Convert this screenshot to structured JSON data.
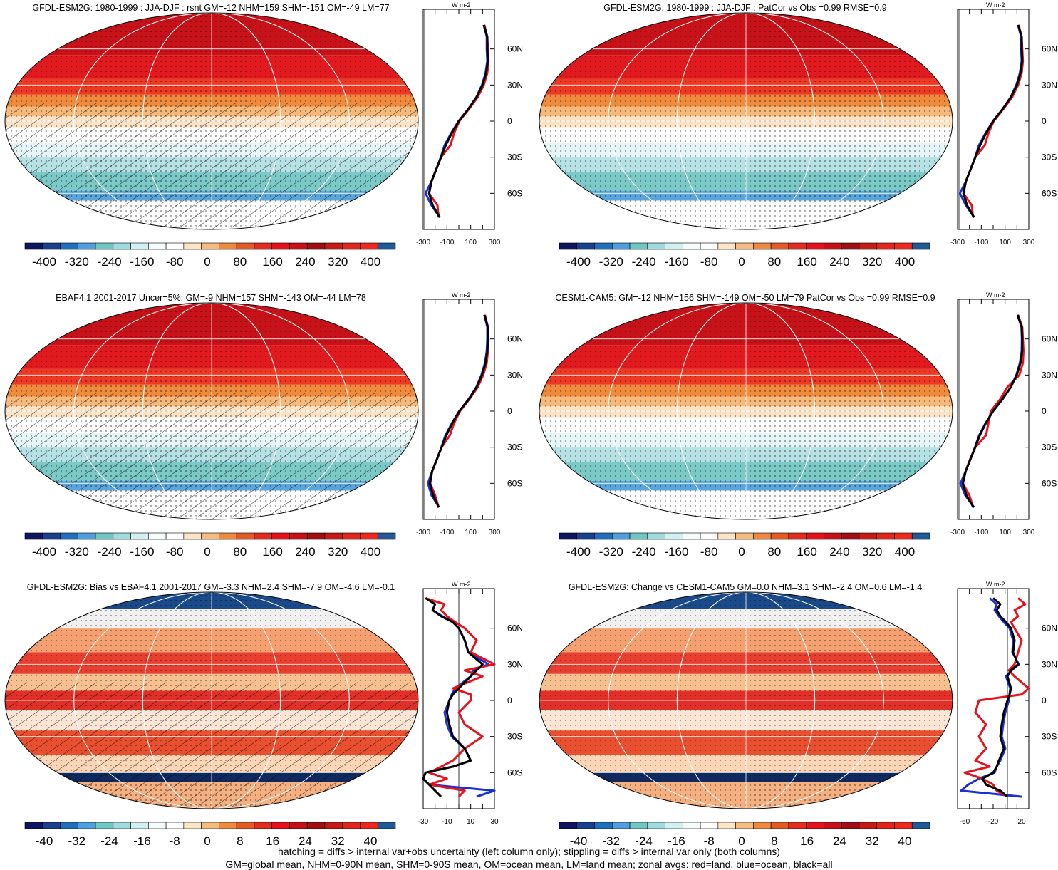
{
  "panels": [
    {
      "id": "p1",
      "title": "GFDL-ESM2G: 1980-1999 : JJA-DJF : rsnt GM=-12 NHM=159 SHM=-151 OM=-49 LM=77",
      "kind": "absolute",
      "hatched": true,
      "cb_labels": [
        "-400",
        "-320",
        "-240",
        "-160",
        "-80",
        "0",
        "80",
        "160",
        "240",
        "320",
        "400"
      ],
      "zonal_xticks": [
        "-300",
        "-100",
        "100",
        "300"
      ],
      "zonal_xrange": [
        -300,
        300
      ],
      "zonal_yticks": [
        "60N",
        "30N",
        "0",
        "30S",
        "60S"
      ],
      "unit": "W m-2"
    },
    {
      "id": "p2",
      "title": "GFDL-ESM2G: 1980-1999 : JJA-DJF : PatCor vs Obs =0.99 RMSE=0.9",
      "kind": "absolute",
      "hatched": false,
      "cb_labels": [
        "-400",
        "-320",
        "-240",
        "-160",
        "-80",
        "0",
        "80",
        "160",
        "240",
        "320",
        "400"
      ],
      "zonal_xticks": [
        "-300",
        "-100",
        "100",
        "300"
      ],
      "zonal_xrange": [
        -300,
        300
      ],
      "zonal_yticks": [
        "60N",
        "30N",
        "0",
        "30S",
        "60S"
      ],
      "unit": "W m-2"
    },
    {
      "id": "p3",
      "title": "EBAF4.1 2001-2017 Uncer=5%: GM=-9 NHM=157 SHM=-143 OM=-44 LM=78",
      "kind": "absolute",
      "hatched": true,
      "cb_labels": [
        "-400",
        "-320",
        "-240",
        "-160",
        "-80",
        "0",
        "80",
        "160",
        "240",
        "320",
        "400"
      ],
      "zonal_xticks": [
        "-300",
        "-100",
        "100",
        "300"
      ],
      "zonal_xrange": [
        -300,
        300
      ],
      "zonal_yticks": [
        "60N",
        "30N",
        "0",
        "30S",
        "60S"
      ],
      "unit": "W m-2"
    },
    {
      "id": "p4",
      "title": "CESM1-CAM5: GM=-12 NHM=156 SHM=-149 OM=-50 LM=79 PatCor vs Obs =0.99 RMSE=0.9",
      "kind": "absolute",
      "hatched": false,
      "cb_labels": [
        "-400",
        "-320",
        "-240",
        "-160",
        "-80",
        "0",
        "80",
        "160",
        "240",
        "320",
        "400"
      ],
      "zonal_xticks": [
        "-300",
        "-100",
        "100",
        "300"
      ],
      "zonal_xrange": [
        -300,
        300
      ],
      "zonal_yticks": [
        "60N",
        "30N",
        "0",
        "30S",
        "60S"
      ],
      "unit": "W m-2"
    },
    {
      "id": "p5",
      "title": "GFDL-ESM2G: Bias vs EBAF4.1 2001-2017 GM=-3.3 NHM=2.4 SHM=-7.9 OM=-4.6 LM=-0.1",
      "kind": "diff",
      "hatched": true,
      "cb_labels": [
        "-40",
        "-32",
        "-24",
        "-16",
        "-8",
        "0",
        "8",
        "16",
        "24",
        "32",
        "40"
      ],
      "zonal_xticks": [
        "-30",
        "-10",
        "10",
        "30"
      ],
      "zonal_xrange": [
        -30,
        30
      ],
      "zonal_yticks": [
        "60N",
        "30N",
        "0",
        "30S",
        "60S"
      ],
      "unit": "W m-2"
    },
    {
      "id": "p6",
      "title": "GFDL-ESM2G: Change vs CESM1-CAM5 GM=0.0 NHM=3.1 SHM=-2.4 OM=0.6 LM=-1.4",
      "kind": "diff",
      "hatched": false,
      "cb_labels": [
        "-40",
        "-32",
        "-24",
        "-16",
        "-8",
        "0",
        "8",
        "16",
        "24",
        "32",
        "40"
      ],
      "zonal_xticks": [
        "-60",
        "-20",
        "20"
      ],
      "zonal_xrange": [
        -70,
        30
      ],
      "zonal_yticks": [
        "60N",
        "30N",
        "0",
        "30S",
        "60S"
      ],
      "unit": "W m-2"
    }
  ],
  "colorbar_colors": [
    "#0c1560",
    "#15418f",
    "#1f6fbf",
    "#4f9fdf",
    "#6fc6c3",
    "#a0dbe0",
    "#d0f0f2",
    "#f6fbfb",
    "#ffffff",
    "#fde4c4",
    "#f6bb7f",
    "#ee8a3f",
    "#e45a24",
    "#e42b20",
    "#e8101a",
    "#c81018",
    "#9e0e12",
    "#c51a16",
    "#e3241b",
    "#f0281c",
    "#1d5a97"
  ],
  "footer": {
    "line1": "hatching = diffs > internal var+obs uncertainty (left column only); stippling = diffs > internal var only (both columns)",
    "line2": "GM=global mean, NHM=0-90N mean, SHM=0-90S mean, OM=ocean mean, LM=land mean; zonal avgs: red=land, blue=ocean, black=all"
  },
  "chart_data": [
    {
      "type": "heatmap",
      "title": "GFDL-ESM2G: 1980-1999 : JJA-DJF : rsnt GM=-12 NHM=159 SHM=-151 OM=-49 LM=77",
      "zonal_mean_lat": [
        80,
        70,
        60,
        50,
        40,
        30,
        20,
        10,
        0,
        -10,
        -20,
        -30,
        -40,
        -50,
        -60,
        -70,
        -80
      ],
      "zonal_all": [
        210,
        240,
        240,
        245,
        230,
        200,
        150,
        80,
        0,
        -60,
        -110,
        -150,
        -190,
        -230,
        -250,
        -220,
        -160
      ],
      "zonal_land": [
        215,
        240,
        245,
        250,
        240,
        210,
        160,
        85,
        5,
        -40,
        -70,
        -150,
        -190,
        -230,
        -250,
        -180,
        -170
      ],
      "zonal_ocean": [
        210,
        235,
        235,
        240,
        225,
        195,
        148,
        80,
        -2,
        -65,
        -120,
        -152,
        -190,
        -230,
        -280,
        -230,
        -160
      ]
    },
    {
      "type": "heatmap",
      "title": "GFDL-ESM2G: 1980-1999 : JJA-DJF : PatCor vs Obs =0.99 RMSE=0.9",
      "zonal_mean_lat": [
        80,
        70,
        60,
        50,
        40,
        30,
        20,
        10,
        0,
        -10,
        -20,
        -30,
        -40,
        -50,
        -60,
        -70,
        -80
      ],
      "zonal_all": [
        210,
        240,
        240,
        245,
        230,
        200,
        150,
        80,
        0,
        -60,
        -110,
        -150,
        -190,
        -230,
        -250,
        -220,
        -160
      ],
      "zonal_land": [
        215,
        240,
        245,
        250,
        240,
        210,
        160,
        85,
        5,
        -40,
        -70,
        -150,
        -190,
        -230,
        -250,
        -180,
        -170
      ],
      "zonal_ocean": [
        210,
        235,
        235,
        240,
        225,
        195,
        148,
        80,
        -2,
        -65,
        -120,
        -152,
        -190,
        -230,
        -280,
        -230,
        -160
      ]
    },
    {
      "type": "heatmap",
      "title": "EBAF4.1 2001-2017 Uncer=5%: GM=-9 NHM=157 SHM=-143 OM=-44 LM=78",
      "zonal_mean_lat": [
        80,
        70,
        60,
        50,
        40,
        30,
        20,
        10,
        0,
        -10,
        -20,
        -30,
        -40,
        -50,
        -60,
        -70,
        -80
      ],
      "zonal_all": [
        215,
        245,
        245,
        240,
        225,
        195,
        150,
        85,
        5,
        -55,
        -105,
        -145,
        -185,
        -225,
        -245,
        -215,
        -170
      ],
      "zonal_land": [
        220,
        245,
        250,
        245,
        235,
        205,
        160,
        90,
        10,
        -40,
        -75,
        -145,
        -185,
        -225,
        -240,
        -200,
        -170
      ],
      "zonal_ocean": [
        215,
        240,
        240,
        235,
        220,
        190,
        148,
        83,
        3,
        -58,
        -112,
        -147,
        -185,
        -225,
        -260,
        -230,
        -165
      ]
    },
    {
      "type": "heatmap",
      "title": "CESM1-CAM5: GM=-12 NHM=156 SHM=-149 OM=-50 LM=79 PatCor vs Obs =0.99 RMSE=0.9",
      "zonal_mean_lat": [
        80,
        70,
        60,
        50,
        40,
        30,
        20,
        10,
        0,
        -10,
        -20,
        -30,
        -40,
        -50,
        -60,
        -70,
        -80
      ],
      "zonal_all": [
        205,
        240,
        245,
        245,
        230,
        198,
        148,
        78,
        -2,
        -62,
        -112,
        -152,
        -192,
        -232,
        -255,
        -225,
        -165
      ],
      "zonal_land": [
        210,
        245,
        250,
        255,
        250,
        220,
        120,
        60,
        -20,
        -40,
        -60,
        -150,
        -195,
        -232,
        -255,
        -200,
        -170
      ],
      "zonal_ocean": [
        205,
        238,
        242,
        240,
        225,
        195,
        150,
        80,
        0,
        -65,
        -118,
        -153,
        -192,
        -232,
        -275,
        -235,
        -160
      ]
    },
    {
      "type": "heatmap",
      "title": "GFDL-ESM2G: Bias vs EBAF4.1 2001-2017 GM=-3.3 NHM=2.4 SHM=-7.9 OM=-4.6 LM=-0.1",
      "zonal_mean_lat": [
        85,
        80,
        75,
        70,
        65,
        60,
        50,
        40,
        30,
        25,
        20,
        10,
        5,
        0,
        -10,
        -20,
        -30,
        -40,
        -50,
        -55,
        -60,
        -65,
        -70,
        -75,
        -80
      ],
      "zonal_all": [
        -28,
        -20,
        -22,
        -15,
        -5,
        0,
        5,
        8,
        20,
        15,
        10,
        0,
        -5,
        -8,
        -10,
        -8,
        -5,
        5,
        10,
        -5,
        -28,
        -30,
        -25,
        -20,
        -15
      ],
      "zonal_land": [
        -28,
        -12,
        -15,
        -10,
        -3,
        5,
        15,
        10,
        30,
        5,
        20,
        -5,
        10,
        10,
        0,
        5,
        20,
        5,
        -5,
        -15,
        -25,
        -10,
        -25,
        5,
        0
      ],
      "zonal_ocean": [
        -28,
        -20,
        -22,
        -14,
        -5,
        0,
        5,
        8,
        25,
        12,
        10,
        -3,
        -6,
        -8,
        -12,
        -10,
        -6,
        5,
        10,
        -5,
        -28,
        -30,
        -25,
        30,
        15
      ]
    },
    {
      "type": "heatmap",
      "title": "GFDL-ESM2G: Change vs CESM1-CAM5 GM=0.0 NHM=3.1 SHM=-2.4 OM=0.6 LM=-1.4",
      "zonal_mean_lat": [
        85,
        80,
        75,
        70,
        65,
        60,
        50,
        40,
        30,
        25,
        20,
        10,
        5,
        0,
        -10,
        -20,
        -30,
        -40,
        -50,
        -55,
        -60,
        -65,
        -70,
        -75,
        -80
      ],
      "zonal_all": [
        -20,
        -10,
        -15,
        -10,
        -2,
        5,
        10,
        8,
        15,
        5,
        0,
        5,
        3,
        0,
        -5,
        -8,
        -10,
        -5,
        -12,
        -15,
        -20,
        -35,
        -30,
        -10,
        0
      ],
      "zonal_land": [
        15,
        25,
        10,
        15,
        5,
        10,
        20,
        15,
        10,
        2,
        10,
        30,
        20,
        -40,
        -45,
        -30,
        -40,
        -30,
        -45,
        -25,
        -60,
        -35,
        -20,
        -15,
        0
      ],
      "zonal_ocean": [
        -25,
        -15,
        -18,
        -12,
        -5,
        3,
        8,
        7,
        16,
        6,
        -2,
        4,
        3,
        2,
        -3,
        -6,
        -8,
        -3,
        -10,
        -15,
        -18,
        -40,
        -55,
        -65,
        20
      ]
    }
  ]
}
